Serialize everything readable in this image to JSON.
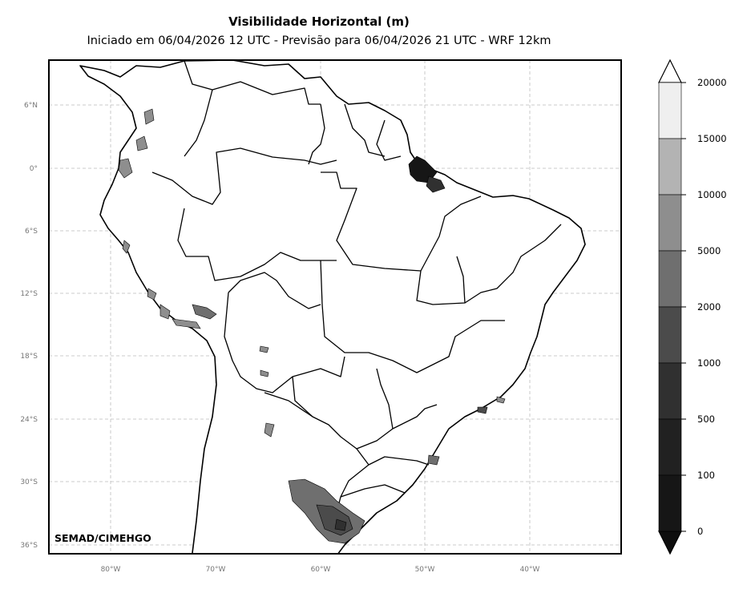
{
  "title": "Visibilidade Horizontal (m)",
  "subtitle": "Iniciado em 06/04/2026 12 UTC - Previsão para 06/04/2026 21 UTC - WRF 12km",
  "credit": "SEMAD/CIMEHGO",
  "lon_labels": [
    "80°W",
    "70°W",
    "60°W",
    "50°W",
    "40°W"
  ],
  "lat_labels": [
    "6°N",
    "0°",
    "6°S",
    "12°S",
    "18°S",
    "24°S",
    "30°S",
    "36°S"
  ],
  "colorbar": {
    "ticks": [
      "20000",
      "15000",
      "10000",
      "5000",
      "2000",
      "1000",
      "500",
      "100",
      "0"
    ],
    "colors": [
      "#efefef",
      "#b3b3b3",
      "#8e8e8e",
      "#6f6f6f",
      "#4b4b4b",
      "#303030",
      "#212121",
      "#161616"
    ],
    "extend": "both"
  },
  "map_style": {
    "land": "#ffffff",
    "border": "#000000",
    "grid": "#bbbbbb",
    "grid_style": "dashed"
  }
}
